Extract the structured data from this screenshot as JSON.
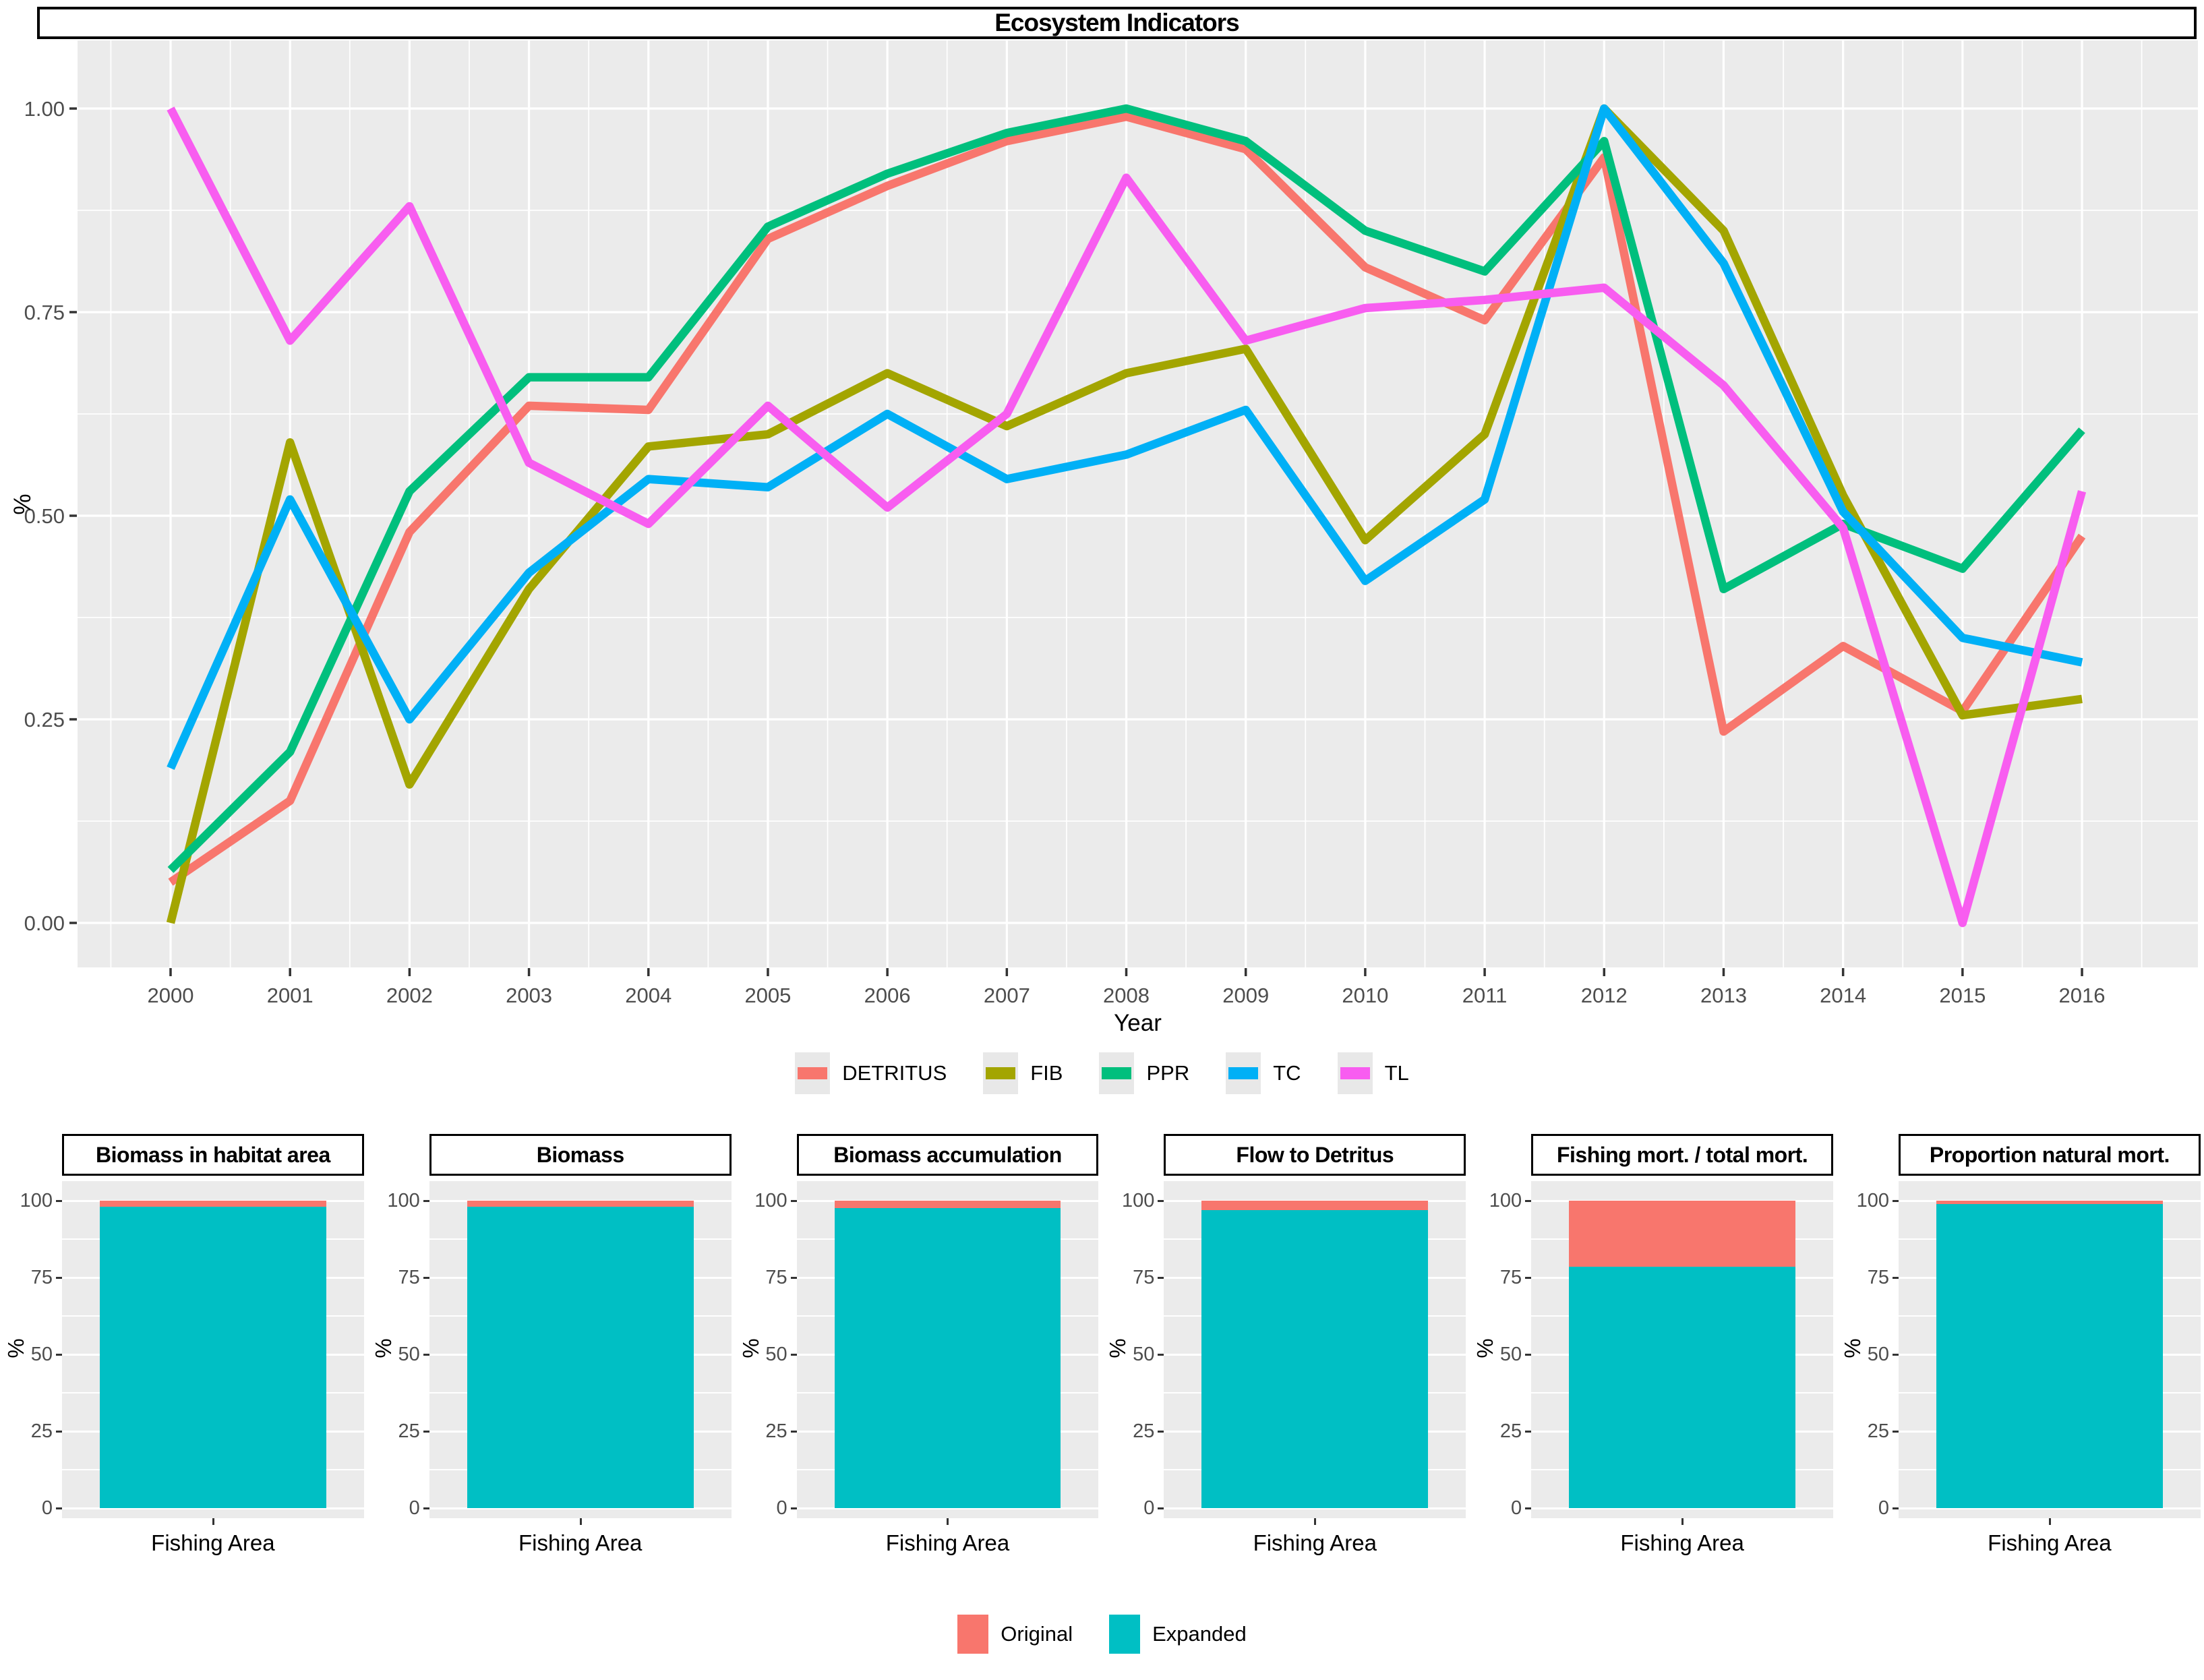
{
  "top_chart": {
    "title": "Ecosystem Indicators",
    "xlabel": "Year",
    "ylabel": "%"
  },
  "legend_top": {
    "items": [
      {
        "label": "DETRITUS",
        "color": "#F8766D"
      },
      {
        "label": "FIB",
        "color": "#A3A500"
      },
      {
        "label": "PPR",
        "color": "#00BF7D"
      },
      {
        "label": "TC",
        "color": "#00B0F6"
      },
      {
        "label": "TL",
        "color": "#F85DF0"
      }
    ]
  },
  "legend_bottom": {
    "items": [
      {
        "label": "Original",
        "color": "#F8766D"
      },
      {
        "label": "Expanded",
        "color": "#00BFC4"
      }
    ]
  },
  "colors": {
    "panel_background": "#EBEBEB",
    "gridline": "#FFFFFF",
    "tick_text": "#4D4D4D"
  },
  "chart_data": [
    {
      "type": "line",
      "title": "Ecosystem Indicators",
      "xlabel": "Year",
      "ylabel": "%",
      "x": [
        2000,
        2001,
        2002,
        2003,
        2004,
        2005,
        2006,
        2007,
        2008,
        2009,
        2010,
        2011,
        2012,
        2013,
        2014,
        2015,
        2016
      ],
      "ylim": [
        0,
        1.0
      ],
      "y_ticks": [
        0,
        0.25,
        0.5,
        0.75,
        1.0
      ],
      "y_tick_labels": [
        "0.00",
        "0.25",
        "0.50",
        "0.75",
        "1.00"
      ],
      "grid": true,
      "legend_position": "bottom",
      "series": [
        {
          "name": "DETRITUS",
          "color": "#F8766D",
          "values": [
            0.05,
            0.15,
            0.48,
            0.635,
            0.63,
            0.84,
            0.905,
            0.96,
            0.99,
            0.95,
            0.805,
            0.74,
            0.94,
            0.235,
            0.34,
            0.26,
            0.475
          ]
        },
        {
          "name": "FIB",
          "color": "#A3A500",
          "values": [
            0.0,
            0.59,
            0.17,
            0.41,
            0.585,
            0.6,
            0.675,
            0.61,
            0.675,
            0.705,
            0.47,
            0.6,
            1.0,
            0.85,
            0.525,
            0.255,
            0.275
          ]
        },
        {
          "name": "PPR",
          "color": "#00BF7D",
          "values": [
            0.065,
            0.21,
            0.53,
            0.67,
            0.67,
            0.855,
            0.92,
            0.97,
            1.0,
            0.96,
            0.85,
            0.8,
            0.96,
            0.41,
            0.49,
            0.435,
            0.605
          ]
        },
        {
          "name": "TC",
          "color": "#00B0F6",
          "values": [
            0.19,
            0.52,
            0.25,
            0.43,
            0.545,
            0.535,
            0.625,
            0.545,
            0.575,
            0.63,
            0.42,
            0.52,
            1.0,
            0.81,
            0.505,
            0.35,
            0.32
          ]
        },
        {
          "name": "TL",
          "color": "#F85DF0",
          "values": [
            1.0,
            0.715,
            0.88,
            0.565,
            0.49,
            0.635,
            0.51,
            0.625,
            0.915,
            0.715,
            0.755,
            0.765,
            0.78,
            0.66,
            0.485,
            0.0,
            0.53
          ]
        }
      ]
    },
    {
      "type": "bar",
      "subtype": "stacked-percent",
      "xlabel": "Fishing Area",
      "ylabel": "%",
      "ylim": [
        0,
        100
      ],
      "y_ticks": [
        0,
        25,
        50,
        75,
        100
      ],
      "categories": [
        "Fishing Area"
      ],
      "colors": {
        "Original": "#F8766D",
        "Expanded": "#00BFC4"
      },
      "legend_position": "bottom",
      "facets": [
        {
          "title": "Biomass in habitat area",
          "series": [
            {
              "name": "Original",
              "value": 2
            },
            {
              "name": "Expanded",
              "value": 98
            }
          ]
        },
        {
          "title": "Biomass",
          "series": [
            {
              "name": "Original",
              "value": 2
            },
            {
              "name": "Expanded",
              "value": 98
            }
          ]
        },
        {
          "title": "Biomass accumulation",
          "series": [
            {
              "name": "Original",
              "value": 2.5
            },
            {
              "name": "Expanded",
              "value": 97.5
            }
          ]
        },
        {
          "title": "Flow to Detritus",
          "series": [
            {
              "name": "Original",
              "value": 3
            },
            {
              "name": "Expanded",
              "value": 97
            }
          ]
        },
        {
          "title": "Fishing mort. / total mort.",
          "series": [
            {
              "name": "Original",
              "value": 21.5
            },
            {
              "name": "Expanded",
              "value": 78.5
            }
          ]
        },
        {
          "title": "Proportion natural mort.",
          "series": [
            {
              "name": "Original",
              "value": 1
            },
            {
              "name": "Expanded",
              "value": 99
            }
          ]
        }
      ]
    }
  ]
}
